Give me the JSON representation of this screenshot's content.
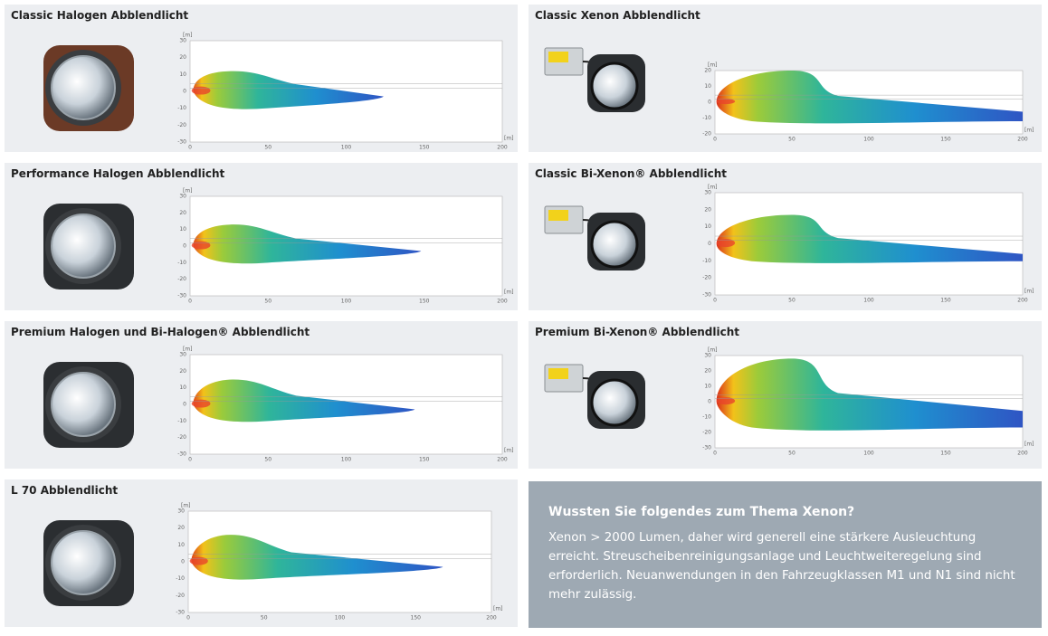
{
  "panels": [
    {
      "title": "Classic Halogen Abblendlicht",
      "unit": "[m]",
      "yticks": [
        30,
        20,
        10,
        0,
        -10,
        -20,
        -30
      ],
      "xticks": [
        0,
        50,
        100,
        150,
        200
      ]
    },
    {
      "title": "Performance Halogen Abblendlicht",
      "unit": "[m]",
      "yticks": [
        30,
        20,
        10,
        0,
        -10,
        -20,
        -30
      ],
      "xticks": [
        0,
        50,
        100,
        150,
        200
      ]
    },
    {
      "title": "Premium Halogen und Bi-Halogen® Abblendlicht",
      "unit": "[m]",
      "yticks": [
        30,
        20,
        10,
        0,
        -10,
        -20,
        -30
      ],
      "xticks": [
        0,
        50,
        100,
        150,
        200
      ]
    },
    {
      "title": "L 70 Abblendlicht",
      "unit": "[m]",
      "yticks": [
        30,
        20,
        10,
        0,
        -10,
        -20,
        -30
      ],
      "xticks": [
        0,
        50,
        100,
        150,
        200
      ]
    },
    {
      "title": "Classic Xenon Abblendlicht",
      "unit": "[m]",
      "yticks": [
        20,
        10,
        0,
        -10,
        -20
      ],
      "xticks": [
        0,
        50,
        100,
        150,
        200
      ]
    },
    {
      "title": "Classic Bi-Xenon® Abblendlicht",
      "unit": "[m]",
      "yticks": [
        30,
        20,
        10,
        0,
        -10,
        -20,
        -30
      ],
      "xticks": [
        0,
        50,
        100,
        150,
        200
      ]
    },
    {
      "title": "Premium Bi-Xenon® Abblendlicht",
      "unit": "[m]",
      "yticks": [
        30,
        20,
        10,
        0,
        -10,
        -20,
        -30
      ],
      "xticks": [
        0,
        50,
        100,
        150,
        200
      ]
    }
  ],
  "info": {
    "title": "Wussten Sie folgendes zum Thema Xenon?",
    "lines": [
      "Xenon > 2000 Lumen, daher wird generell eine stärkere Ausleuchtung erreicht.",
      "Streuscheibenreinigungsanlage und Leuchtweiteregelung sind erforderlich.",
      "Neuanwendungen in den Fahrzeugklassen M1 und N1 sind nicht mehr zulässig."
    ]
  }
}
